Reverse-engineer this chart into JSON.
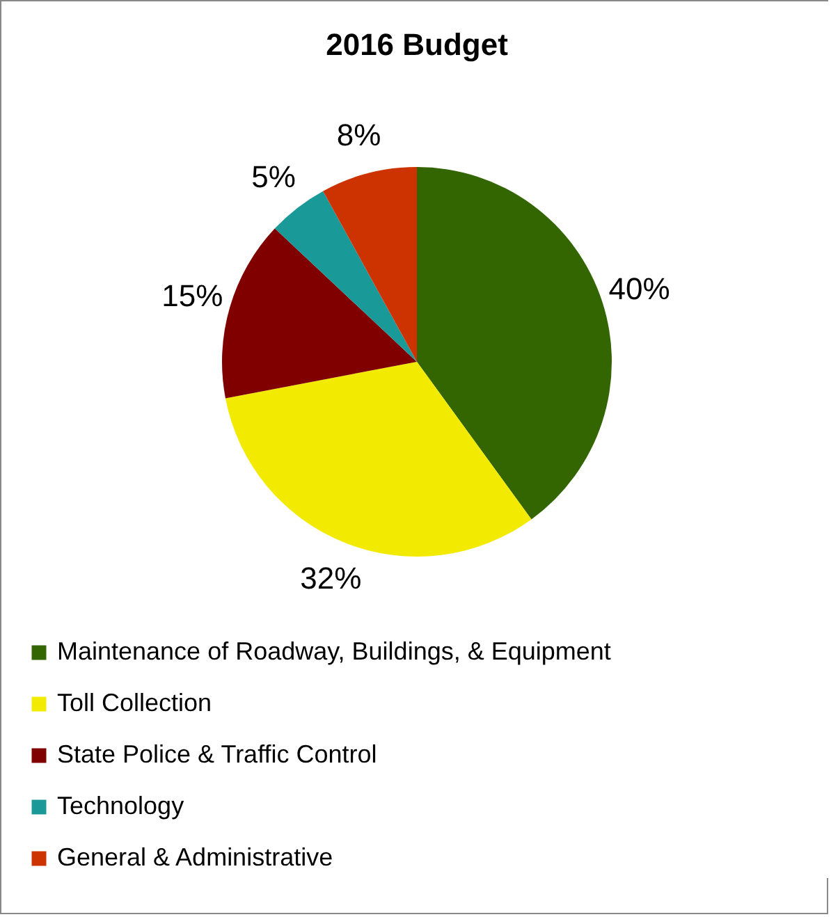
{
  "chart_data": {
    "type": "pie",
    "title": "2016 Budget",
    "categories": [
      "Maintenance of Roadway, Buildings, & Equipment",
      "Toll Collection",
      "State Police & Traffic Control",
      "Technology",
      "General & Administrative"
    ],
    "values": [
      40,
      32,
      15,
      5,
      8
    ],
    "colors": [
      "#336600",
      "#f2ea00",
      "#800000",
      "#1a9999",
      "#cc3300"
    ],
    "value_labels": [
      "40%",
      "32%",
      "15%",
      "5%",
      "8%"
    ],
    "legend": "bottom"
  }
}
